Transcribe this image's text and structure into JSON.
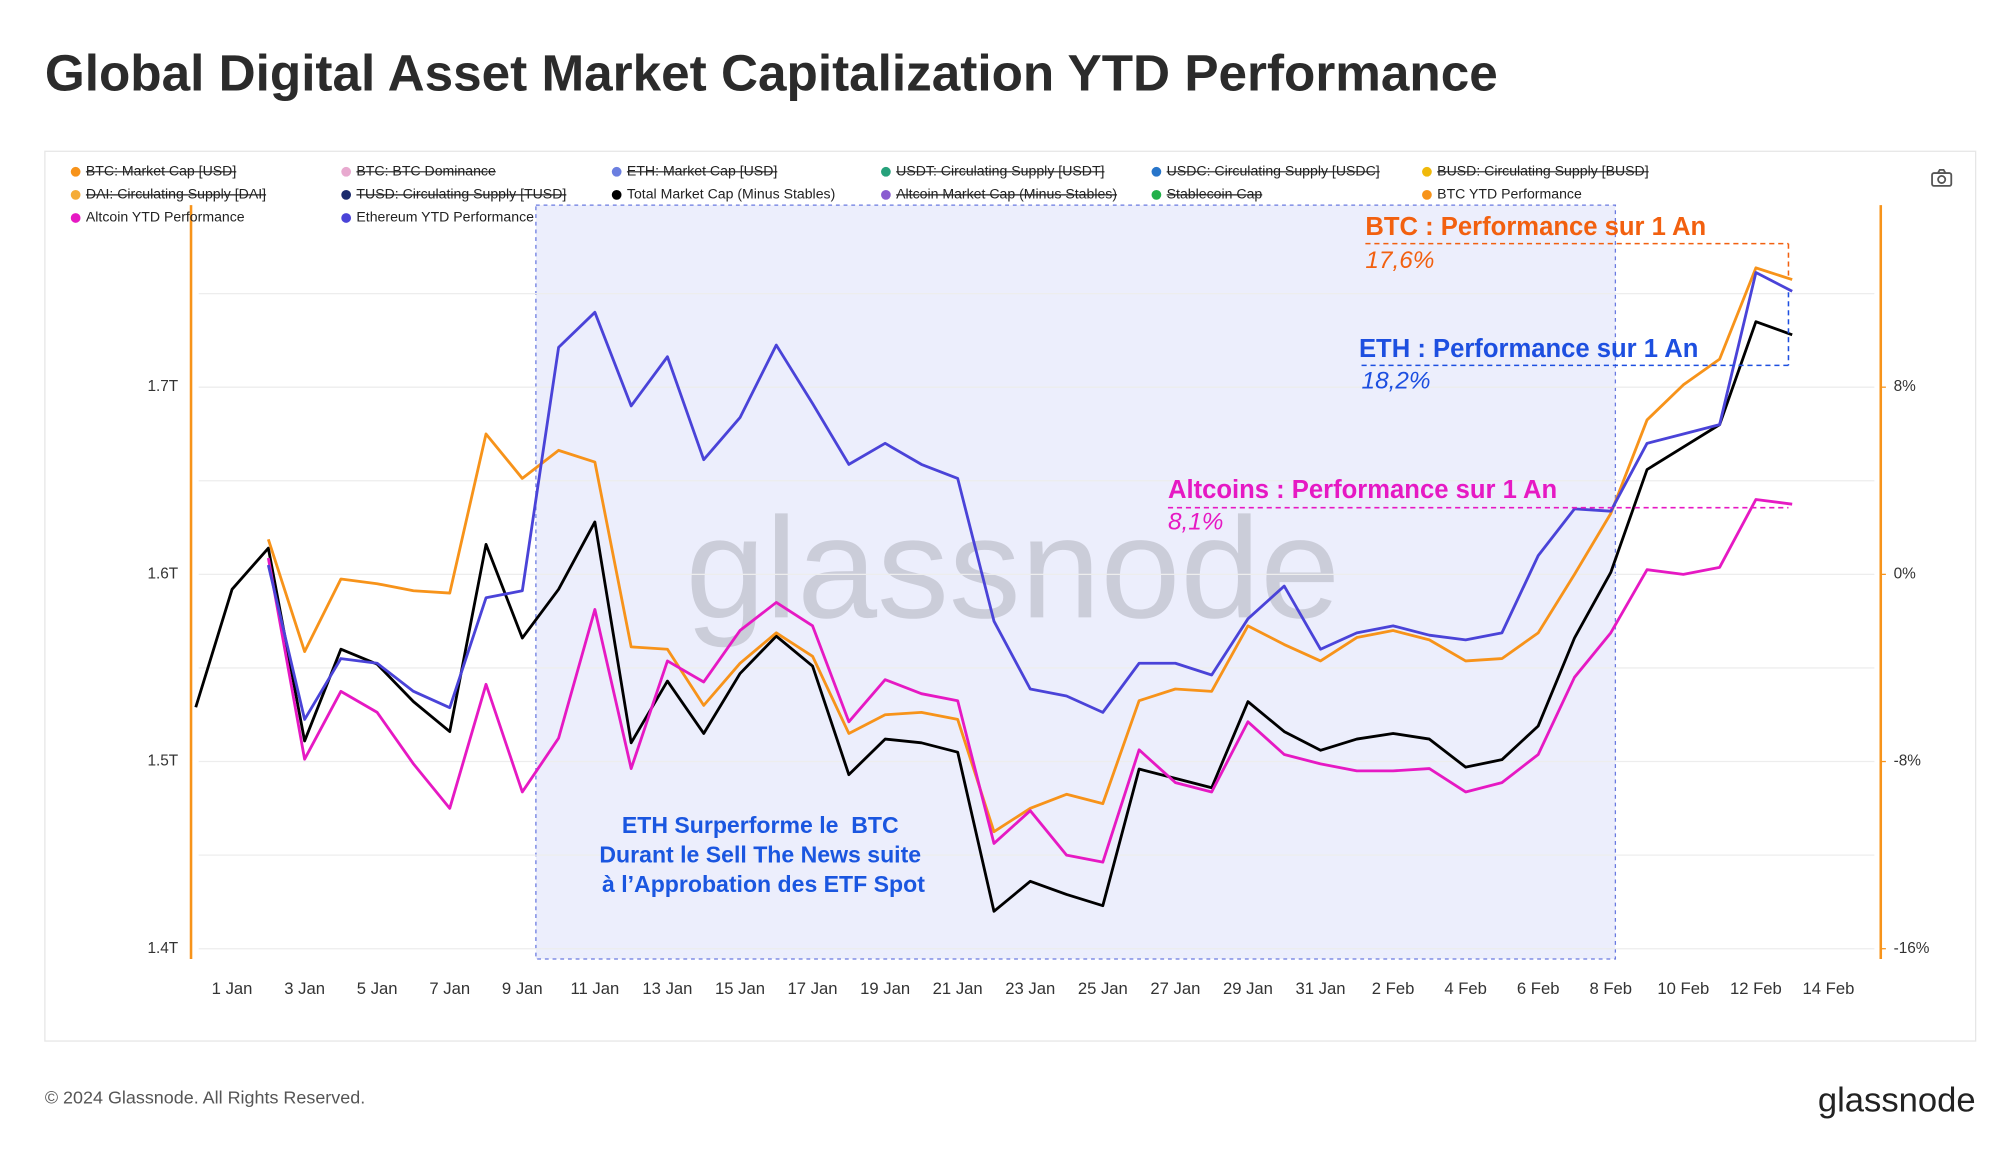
{
  "chart_data": {
    "type": "line",
    "title": "Global Digital Asset Market Capitalization YTD Performance",
    "watermark": "glassnode",
    "grid": true,
    "categories": [
      null,
      "1 Jan",
      null,
      "3 Jan",
      null,
      "5 Jan",
      null,
      "7 Jan",
      null,
      "9 Jan",
      null,
      "11 Jan",
      null,
      "13 Jan",
      null,
      "15 Jan",
      null,
      "17 Jan",
      null,
      "19 Jan",
      null,
      "21 Jan",
      null,
      "23 Jan",
      null,
      "25 Jan",
      null,
      "27 Jan",
      null,
      "29 Jan",
      null,
      "31 Jan",
      null,
      "2 Feb",
      null,
      "4 Feb",
      null,
      "6 Feb",
      null,
      "8 Feb",
      null,
      "10 Feb",
      null,
      "12 Feb",
      null,
      "14 Feb"
    ],
    "ylim": [
      1400000000000,
      1800000000000
    ],
    "yticks": [
      {
        "value": 1400000000000,
        "label": "1.4T"
      },
      {
        "value": 1500000000000,
        "label": "1.5T"
      },
      {
        "value": 1600000000000,
        "label": "1.6T"
      },
      {
        "value": 1700000000000,
        "label": "1.7T"
      }
    ],
    "y_minor_ticks": [
      1450000000000,
      1550000000000,
      1650000000000,
      1750000000000
    ],
    "y2lim": [
      -16,
      16
    ],
    "y2ticks": [
      {
        "value": -16,
        "label": "-16%"
      },
      {
        "value": -8,
        "label": "-8%"
      },
      {
        "value": 0,
        "label": "0%"
      },
      {
        "value": 8,
        "label": "8%"
      }
    ],
    "axis_color": "#f7931a",
    "series": [
      {
        "name": "BTC: Market Cap [USD]",
        "color": "#f7931a",
        "hidden": true
      },
      {
        "name": "BTC: BTC Dominance",
        "color": "#e8a9cf",
        "hidden": true
      },
      {
        "name": "ETH: Market Cap [USD]",
        "color": "#6b7fe0",
        "hidden": true
      },
      {
        "name": "USDT: Circulating Supply [USDT]",
        "color": "#26a17b",
        "hidden": true
      },
      {
        "name": "USDC: Circulating Supply [USDC]",
        "color": "#2775ca",
        "hidden": true
      },
      {
        "name": "BUSD: Circulating Supply [BUSD]",
        "color": "#f0b90b",
        "hidden": true
      },
      {
        "name": "DAI: Circulating Supply [DAI]",
        "color": "#f5ac37",
        "hidden": true
      },
      {
        "name": "TUSD: Circulating Supply [TUSD]",
        "color": "#1a2a6c",
        "hidden": true
      },
      {
        "name": "Total Market Cap (Minus Stables)",
        "color": "#000000",
        "axis": "y",
        "values": [
          1529000000000,
          1592000000000,
          1614000000000,
          1511000000000,
          1560000000000,
          1552000000000,
          1532000000000,
          1516000000000,
          1616000000000,
          1566000000000,
          1592000000000,
          1628000000000,
          1510000000000,
          1543000000000,
          1515000000000,
          1547000000000,
          1567000000000,
          1551000000000,
          1493000000000,
          1512000000000,
          1510000000000,
          1505000000000,
          1420000000000,
          1436000000000,
          1429000000000,
          1423000000000,
          1496000000000,
          1491000000000,
          1486000000000,
          1532000000000,
          1516000000000,
          1506000000000,
          1512000000000,
          1515000000000,
          1512000000000,
          1497000000000,
          1501000000000,
          1519000000000,
          1566000000000,
          1601000000000,
          1656000000000,
          1668000000000,
          1680000000000,
          1735000000000,
          1728000000000,
          null
        ]
      },
      {
        "name": "Altcoin Market Cap (Minus Stables)",
        "color": "#8a5cd0",
        "hidden": true
      },
      {
        "name": "Stablecoin Cap",
        "color": "#22b04a",
        "hidden": true
      },
      {
        "name": "BTC YTD Performance",
        "color": "#f7931a",
        "axis": "y2",
        "values": [
          null,
          null,
          1.5,
          -3.3,
          -0.2,
          -0.4,
          -0.7,
          -0.8,
          6.0,
          4.1,
          5.3,
          4.8,
          -3.1,
          -3.2,
          -5.6,
          -3.8,
          -2.5,
          -3.5,
          -6.8,
          -6.0,
          -5.9,
          -6.2,
          -11.0,
          -10.0,
          -9.4,
          -9.8,
          -5.4,
          -4.9,
          -5.0,
          -2.2,
          -3.0,
          -3.7,
          -2.7,
          -2.4,
          -2.8,
          -3.7,
          -3.6,
          -2.5,
          0.0,
          2.6,
          6.6,
          8.1,
          9.2,
          13.1,
          12.6,
          null
        ]
      },
      {
        "name": "Altcoin YTD Performance",
        "color": "#e619c3",
        "axis": "y2",
        "values": [
          null,
          null,
          0.7,
          -7.9,
          -5.0,
          -5.9,
          -8.1,
          -10.0,
          -4.7,
          -9.3,
          -7.0,
          -1.5,
          -8.3,
          -3.7,
          -4.6,
          -2.4,
          -1.2,
          -2.2,
          -6.3,
          -4.5,
          -5.1,
          -5.4,
          -11.5,
          -10.1,
          -12.0,
          -12.3,
          -7.5,
          -8.9,
          -9.3,
          -6.3,
          -7.7,
          -8.1,
          -8.4,
          -8.4,
          -8.3,
          -9.3,
          -8.9,
          -7.7,
          -4.4,
          -2.5,
          0.2,
          0.0,
          0.3,
          3.2,
          3.0,
          null
        ]
      },
      {
        "name": "Ethereum YTD Performance",
        "color": "#4a43d8",
        "axis": "y2",
        "values": [
          null,
          null,
          0.4,
          -6.2,
          -3.6,
          -3.8,
          -5.0,
          -5.7,
          -1.0,
          -0.7,
          9.7,
          11.2,
          7.2,
          9.3,
          4.9,
          6.7,
          9.8,
          7.3,
          4.7,
          5.6,
          4.7,
          4.1,
          -2.0,
          -4.9,
          -5.2,
          -5.9,
          -3.8,
          -3.8,
          -4.3,
          -1.9,
          -0.5,
          -3.2,
          -2.5,
          -2.2,
          -2.6,
          -2.8,
          -2.5,
          0.8,
          2.8,
          2.7,
          5.6,
          6.0,
          6.4,
          12.9,
          12.1,
          null
        ]
      }
    ],
    "annotations": [
      {
        "title": "BTC : Performance sur 1 An",
        "value": "17,6%",
        "color": "#f2600f"
      },
      {
        "title": "ETH : Performance sur 1 An",
        "value": "18,2%",
        "color": "#1d4fe0"
      },
      {
        "title": "Altcoins : Performance sur 1 An",
        "value": "8,1%",
        "color": "#e619c3"
      }
    ],
    "highlight_note": {
      "lines": [
        "ETH Surperforme le  BTC",
        "Durant le Sell The News suite",
        " à l’Approbation des ETF Spot"
      ],
      "color": "#1a56e0"
    }
  },
  "footer_text": "© 2024 Glassnode. All Rights Reserved.",
  "logo_text": "glassnode"
}
